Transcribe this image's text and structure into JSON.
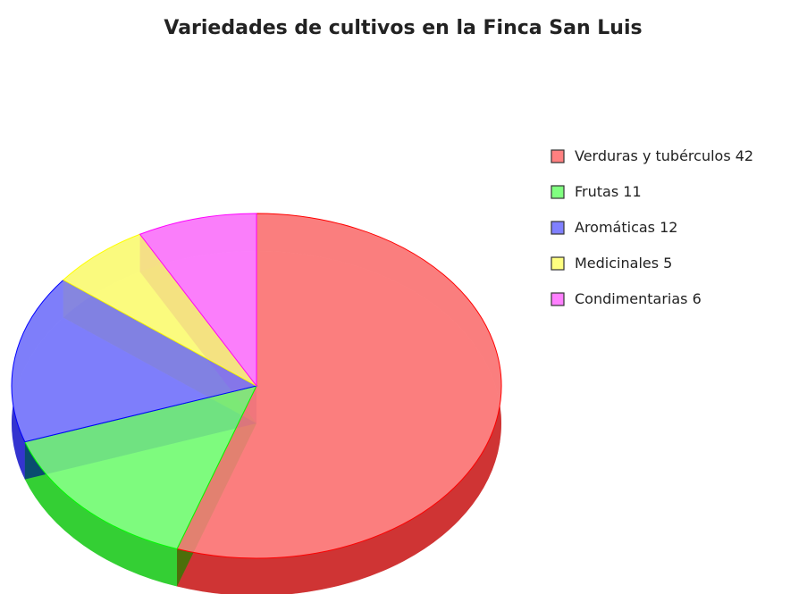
{
  "chart_data": {
    "type": "pie",
    "title": "Variedades de cultivos en la Finca San Luis",
    "categories": [
      "Verduras y tubérculos",
      "Frutas",
      "Aromáticas",
      "Medicinales",
      "Condimentarias"
    ],
    "values": [
      42,
      11,
      12,
      5,
      6
    ],
    "colors": [
      "#ff0000",
      "#00ff00",
      "#0000ff",
      "#ffff00",
      "#ff00ff"
    ],
    "legend": "right"
  }
}
